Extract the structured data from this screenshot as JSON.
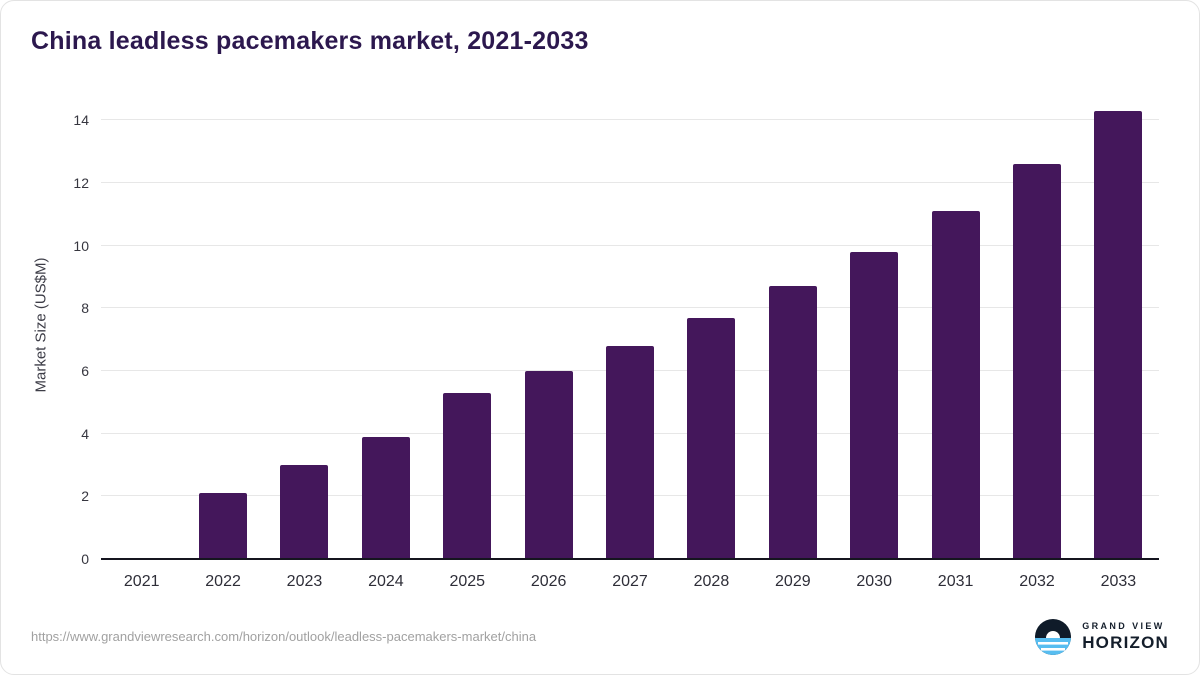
{
  "title": "China leadless pacemakers market, 2021-2033",
  "footer": {
    "source_url": "https://www.grandviewresearch.com/horizon/outlook/leadless-pacemakers-market/china",
    "brand_top": "GRAND VIEW",
    "brand_bottom": "HORIZON"
  },
  "colors": {
    "bar": "#44175b",
    "title": "#2c184e",
    "grid": "#e7e7e7",
    "axis": "#15151f",
    "url_text": "#a1a1a1",
    "brand_text": "#141e2b",
    "logo_water": "#57bdf0",
    "logo_dark": "#0f1b29"
  },
  "chart_data": {
    "type": "bar",
    "title": "China leadless pacemakers market, 2021-2033",
    "categories": [
      "2021",
      "2022",
      "2023",
      "2024",
      "2025",
      "2026",
      "2027",
      "2028",
      "2029",
      "2030",
      "2031",
      "2032",
      "2033"
    ],
    "values": [
      0,
      2.1,
      3.0,
      3.9,
      5.3,
      6.0,
      6.8,
      7.7,
      8.7,
      9.8,
      11.1,
      12.6,
      14.3
    ],
    "xlabel": "",
    "ylabel": "Market Size (US$M)",
    "ylim": [
      0,
      15
    ],
    "yticks": [
      0,
      2,
      4,
      6,
      8,
      10,
      12,
      14
    ],
    "grid": true,
    "legend": false,
    "bar_color": "#44175b"
  }
}
